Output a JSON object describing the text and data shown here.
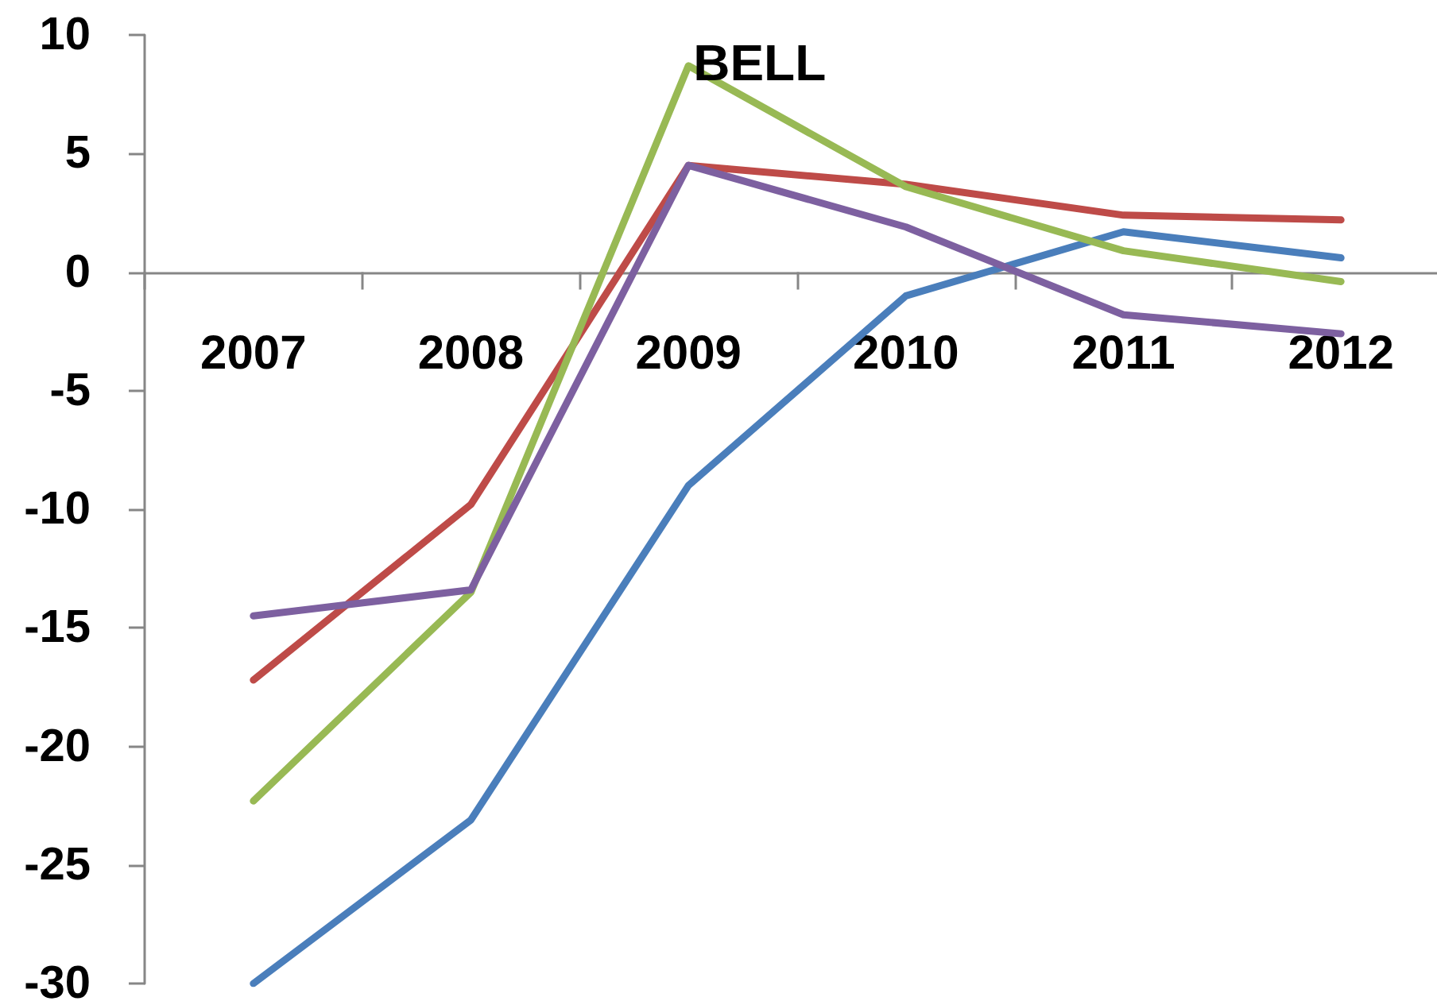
{
  "chart_data": {
    "type": "line",
    "categories": [
      "2007",
      "2008",
      "2009",
      "2010",
      "2011",
      "2012"
    ],
    "series": [
      {
        "color": "#4a7ebb",
        "values": [
          -30,
          -23.1,
          -9,
          -1,
          1.7,
          0.6
        ]
      },
      {
        "color": "#be4b48",
        "values": [
          -17.2,
          -9.8,
          4.5,
          3.7,
          2.4,
          2.2
        ]
      },
      {
        "color": "#98b954",
        "values": [
          -22.3,
          -13.5,
          8.7,
          3.6,
          0.9,
          -0.4
        ]
      },
      {
        "color": "#7d60a0",
        "values": [
          -14.5,
          -13.4,
          4.5,
          1.9,
          -1.8,
          -2.6
        ]
      }
    ],
    "ylim": [
      -30,
      10
    ],
    "yticks": [
      -30,
      -25,
      -20,
      -15,
      -10,
      -5,
      0,
      5,
      10
    ],
    "grid": false,
    "annotations": [
      {
        "text": "BELL",
        "x": "2009",
        "y": 8.7
      }
    ]
  }
}
